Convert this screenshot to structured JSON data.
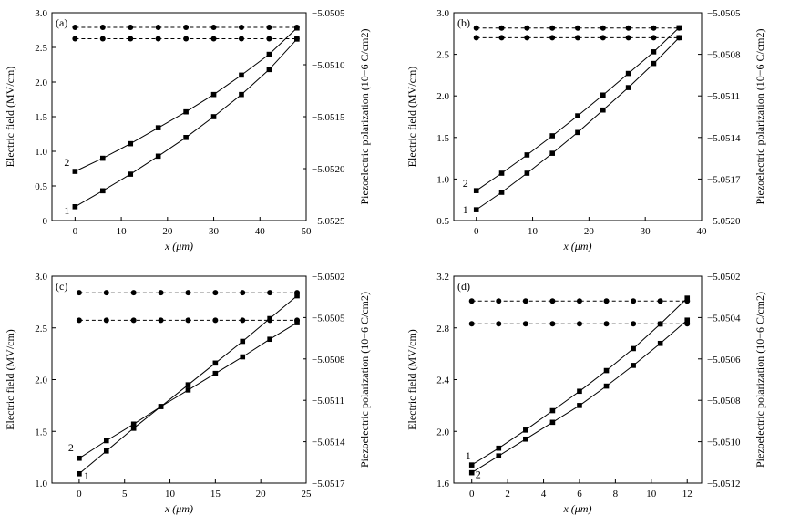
{
  "chart_data": [
    {
      "type": "line",
      "panel_label": "(a)",
      "xlabel": "x (μm)",
      "ylabel": "Electric field (MV/cm)",
      "y2label": "Piezoelectric polarization (10−6 C/cm2)",
      "xlim": [
        -5,
        50
      ],
      "ylim": [
        0,
        3.0
      ],
      "y2lim": [
        -5.0525,
        -5.0505
      ],
      "xticks": [
        "0",
        "10",
        "20",
        "30",
        "40",
        "50"
      ],
      "yticks": [
        "0",
        "0.5",
        "1.0",
        "1.5",
        "2.0",
        "2.5",
        "3.0"
      ],
      "y2ticks": [
        "−5.0525",
        "−5.0520",
        "−5.0515",
        "−5.0510",
        "−5.0505"
      ],
      "series": [
        {
          "name": "1",
          "axis": "left",
          "marker": "square",
          "x": [
            0,
            6,
            12,
            18,
            24,
            30,
            36,
            42,
            48
          ],
          "y": [
            0.2,
            0.43,
            0.67,
            0.93,
            1.2,
            1.5,
            1.82,
            2.18,
            2.62
          ]
        },
        {
          "name": "2",
          "axis": "left",
          "marker": "square",
          "x": [
            0,
            6,
            12,
            18,
            24,
            30,
            36,
            42,
            48
          ],
          "y": [
            0.71,
            0.9,
            1.11,
            1.34,
            1.57,
            1.82,
            2.1,
            2.4,
            2.78
          ]
        },
        {
          "axis": "right",
          "style": "dashed",
          "marker": "circle",
          "x": [
            0,
            6,
            12,
            18,
            24,
            30,
            36,
            42,
            48
          ],
          "y": [
            -5.05064,
            -5.05064,
            -5.05064,
            -5.05064,
            -5.05064,
            -5.05064,
            -5.05064,
            -5.05064,
            -5.05064
          ]
        },
        {
          "axis": "right",
          "style": "dashed",
          "marker": "circle",
          "x": [
            0,
            6,
            12,
            18,
            24,
            30,
            36,
            42,
            48
          ],
          "y": [
            -5.05075,
            -5.05075,
            -5.05075,
            -5.05075,
            -5.05075,
            -5.05075,
            -5.05075,
            -5.05075,
            -5.05075
          ]
        }
      ]
    },
    {
      "type": "line",
      "panel_label": "(b)",
      "xlabel": "x (μm)",
      "ylabel": "Electric field (MV/cm)",
      "y2label": "Piezoelectric polarization (10−6 C/cm2)",
      "xlim": [
        -4,
        40
      ],
      "ylim": [
        0.5,
        3.0
      ],
      "y2lim": [
        -5.052,
        -5.0505
      ],
      "xticks": [
        "0",
        "10",
        "20",
        "30",
        "40"
      ],
      "yticks": [
        "0.5",
        "1.0",
        "1.5",
        "2.0",
        "2.5",
        "3.0"
      ],
      "y2ticks": [
        "−5.0520",
        "−5.0517",
        "−5.0514",
        "−5.0511",
        "−5.0508",
        "−5.0505"
      ],
      "series": [
        {
          "name": "1",
          "axis": "left",
          "marker": "square",
          "x": [
            0,
            4.5,
            9,
            13.5,
            18,
            22.5,
            27,
            31.5,
            36
          ],
          "y": [
            0.63,
            0.84,
            1.07,
            1.31,
            1.56,
            1.83,
            2.1,
            2.39,
            2.7
          ]
        },
        {
          "name": "2",
          "axis": "left",
          "marker": "square",
          "x": [
            0,
            4.5,
            9,
            13.5,
            18,
            22.5,
            27,
            31.5,
            36
          ],
          "y": [
            0.86,
            1.07,
            1.29,
            1.52,
            1.76,
            2.01,
            2.27,
            2.53,
            2.82
          ]
        },
        {
          "axis": "right",
          "style": "dashed",
          "marker": "circle",
          "x": [
            0,
            4.5,
            9,
            13.5,
            18,
            22.5,
            27,
            31.5,
            36
          ],
          "y": [
            -5.05061,
            -5.05061,
            -5.05061,
            -5.05061,
            -5.05061,
            -5.05061,
            -5.05061,
            -5.05061,
            -5.05061
          ]
        },
        {
          "axis": "right",
          "style": "dashed",
          "marker": "circle",
          "x": [
            0,
            4.5,
            9,
            13.5,
            18,
            22.5,
            27,
            31.5,
            36
          ],
          "y": [
            -5.05068,
            -5.05068,
            -5.05068,
            -5.05068,
            -5.05068,
            -5.05068,
            -5.05068,
            -5.05068,
            -5.05068
          ]
        }
      ]
    },
    {
      "type": "line",
      "panel_label": "(c)",
      "xlabel": "x (μm)",
      "ylabel": "Electric field (MV/cm)",
      "y2label": "Piezoelectric polarization (10−6 C/cm2)",
      "xlim": [
        -3,
        25
      ],
      "ylim": [
        1.0,
        3.0
      ],
      "y2lim": [
        -5.0517,
        -5.0502
      ],
      "xticks": [
        "0",
        "5",
        "10",
        "15",
        "20",
        "25"
      ],
      "yticks": [
        "1.0",
        "1.5",
        "2.0",
        "2.5",
        "3.0"
      ],
      "y2ticks": [
        "−5.0517",
        "−5.0514",
        "−5.0511",
        "−5.0508",
        "−5.0505",
        "−5.0502"
      ],
      "series": [
        {
          "name": "1",
          "axis": "left",
          "marker": "square",
          "x": [
            0,
            3,
            6,
            9,
            12,
            15,
            18,
            21,
            24
          ],
          "y": [
            1.09,
            1.31,
            1.53,
            1.74,
            1.95,
            2.16,
            2.37,
            2.59,
            2.81
          ]
        },
        {
          "name": "2",
          "axis": "left",
          "marker": "square",
          "x": [
            0,
            3,
            6,
            9,
            12,
            15,
            18,
            21,
            24
          ],
          "y": [
            1.24,
            1.41,
            1.57,
            1.74,
            1.9,
            2.06,
            2.22,
            2.39,
            2.55
          ]
        },
        {
          "axis": "right",
          "style": "dashed",
          "marker": "circle",
          "x": [
            0,
            3,
            6,
            9,
            12,
            15,
            18,
            21,
            24
          ],
          "y": [
            -5.05032,
            -5.05032,
            -5.05032,
            -5.05032,
            -5.05032,
            -5.05032,
            -5.05032,
            -5.05032,
            -5.05032
          ]
        },
        {
          "axis": "right",
          "style": "dashed",
          "marker": "circle",
          "x": [
            0,
            3,
            6,
            9,
            12,
            15,
            18,
            21,
            24
          ],
          "y": [
            -5.05052,
            -5.05052,
            -5.05052,
            -5.05052,
            -5.05052,
            -5.05052,
            -5.05052,
            -5.05052,
            -5.05052
          ]
        }
      ]
    },
    {
      "type": "line",
      "panel_label": "(d)",
      "xlabel": "x (μm)",
      "ylabel": "Electric field (MV/cm)",
      "y2label": "Piezoelectric polarization (10−6 C/cm2)",
      "xlim": [
        -1,
        12.8
      ],
      "ylim": [
        1.6,
        3.2
      ],
      "y2lim": [
        -5.0512,
        -5.0502
      ],
      "xticks": [
        "0",
        "2",
        "4",
        "6",
        "8",
        "10",
        "12"
      ],
      "yticks": [
        "1.6",
        "2.0",
        "2.4",
        "2.8",
        "3.2"
      ],
      "y2ticks": [
        "−5.0512",
        "−5.0510",
        "−5.0508",
        "−5.0506",
        "−5.0504",
        "−5.0502"
      ],
      "series": [
        {
          "name": "1",
          "axis": "left",
          "marker": "square",
          "x": [
            0,
            1.5,
            3,
            4.5,
            6,
            7.5,
            9,
            10.5,
            12
          ],
          "y": [
            1.74,
            1.87,
            2.01,
            2.16,
            2.31,
            2.47,
            2.64,
            2.83,
            3.03
          ]
        },
        {
          "name": "2",
          "axis": "left",
          "marker": "square",
          "x": [
            0,
            1.5,
            3,
            4.5,
            6,
            7.5,
            9,
            10.5,
            12
          ],
          "y": [
            1.68,
            1.81,
            1.94,
            2.07,
            2.2,
            2.35,
            2.51,
            2.68,
            2.86
          ]
        },
        {
          "axis": "right",
          "style": "dashed",
          "marker": "circle",
          "x": [
            0,
            1.5,
            3,
            4.5,
            6,
            7.5,
            9,
            10.5,
            12
          ],
          "y": [
            -5.05032,
            -5.05032,
            -5.05032,
            -5.05032,
            -5.05032,
            -5.05032,
            -5.05032,
            -5.05032,
            -5.05032
          ]
        },
        {
          "axis": "right",
          "style": "dashed",
          "marker": "circle",
          "x": [
            0,
            1.5,
            3,
            4.5,
            6,
            7.5,
            9,
            10.5,
            12
          ],
          "y": [
            -5.05043,
            -5.05043,
            -5.05043,
            -5.05043,
            -5.05043,
            -5.05043,
            -5.05043,
            -5.05043,
            -5.05043
          ]
        }
      ]
    }
  ]
}
